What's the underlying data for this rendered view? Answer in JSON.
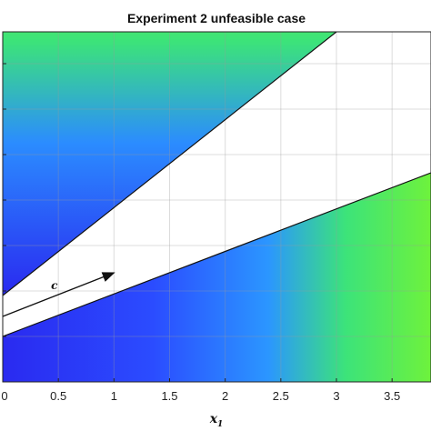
{
  "chart_data": {
    "type": "area",
    "title": "Experiment 2 unfeasible case",
    "xlabel": "x",
    "xlabel_subscript": "1",
    "ylabel": "",
    "xlim": [
      0,
      3.85
    ],
    "ylim": [
      0,
      3.85
    ],
    "xticks": [
      0,
      0.5,
      1,
      1.5,
      2,
      2.5,
      3,
      3.5
    ],
    "xtick_labels": [
      "0",
      "0.5",
      "1",
      "1.5",
      "2",
      "2.5",
      "3",
      "3.5"
    ],
    "yticks": [
      0.5,
      1,
      1.5,
      2,
      2.5,
      3,
      3.5
    ],
    "grid": true,
    "colormap": [
      "#2a2af0",
      "#2b8cff",
      "#3cf07a",
      "#6ef23c"
    ],
    "boundaries": [
      {
        "x": [
          0,
          3.0
        ],
        "y": [
          0.95,
          3.85
        ]
      },
      {
        "x": [
          0,
          3.85
        ],
        "y": [
          0.5,
          2.3
        ]
      }
    ],
    "annotation": {
      "label": "c",
      "from": [
        0,
        0.72
      ],
      "to": [
        1.0,
        1.2
      ]
    }
  }
}
